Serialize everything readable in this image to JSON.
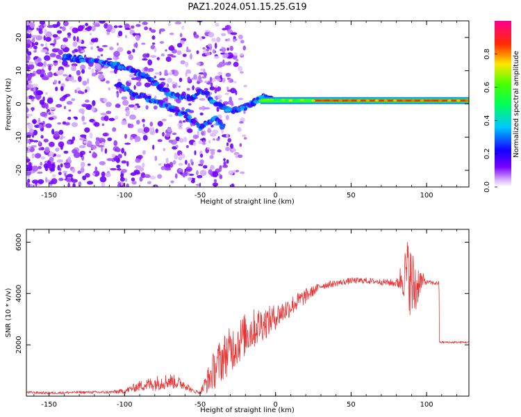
{
  "figure": {
    "title": "PAZ1.2024.051.15.25.G19"
  },
  "chart_data": [
    {
      "type": "heatmap",
      "xlabel": "Height of straight line (km)",
      "ylabel": "Frequency (Hz)",
      "xlim": [
        -165,
        128
      ],
      "ylim": [
        -25,
        25
      ],
      "xticks": [
        -150,
        -100,
        -50,
        0,
        50,
        100
      ],
      "yticks": [
        -20,
        -10,
        0,
        10,
        20
      ],
      "grid": false,
      "colorbar": {
        "label": "Normalized spectral amplitude",
        "range": [
          0,
          1
        ],
        "ticks": [
          0.0,
          0.2,
          0.4,
          0.6,
          0.8
        ],
        "colormap": "gist_rainbow (violet-blue-cyan-green-yellow-red-magenta)"
      },
      "features": {
        "dominant_line_frequency_hz": 1,
        "dominant_line_start_km": -10,
        "dominant_line_end_km": 128,
        "upper_branch_trend": [
          {
            "x": -138,
            "y": 14
          },
          {
            "x": -120,
            "y": 13
          },
          {
            "x": -100,
            "y": 11
          },
          {
            "x": -85,
            "y": 8
          },
          {
            "x": -70,
            "y": 3
          },
          {
            "x": -55,
            "y": 2
          },
          {
            "x": -48,
            "y": 4
          },
          {
            "x": -40,
            "y": 0
          },
          {
            "x": -30,
            "y": -2
          },
          {
            "x": -20,
            "y": -1
          },
          {
            "x": -8,
            "y": 2
          },
          {
            "x": 0,
            "y": 1
          }
        ],
        "lower_branch_trend": [
          {
            "x": -105,
            "y": 6
          },
          {
            "x": -95,
            "y": 3
          },
          {
            "x": -80,
            "y": 1
          },
          {
            "x": -65,
            "y": -2
          },
          {
            "x": -55,
            "y": -5
          },
          {
            "x": -50,
            "y": -7
          },
          {
            "x": -40,
            "y": -4
          },
          {
            "x": -35,
            "y": -7
          }
        ]
      }
    },
    {
      "type": "line",
      "xlabel": "Height of straight line (km)",
      "ylabel": "SNR (10 * v/v)",
      "xlim": [
        -165,
        128
      ],
      "ylim": [
        0,
        6500
      ],
      "xticks": [
        -150,
        -100,
        -50,
        0,
        50,
        100
      ],
      "yticks": [
        2000,
        4000,
        6000
      ],
      "line_color": "#e83535",
      "grid": false,
      "series": [
        {
          "x": [
            -165,
            -150,
            -130,
            -110,
            -100,
            -90,
            -80,
            -70,
            -60,
            -55,
            -50,
            -45,
            -40,
            -35,
            -30,
            -25,
            -20,
            -15,
            -10,
            -5,
            0,
            5,
            10,
            15,
            20,
            25,
            30,
            40,
            50,
            60,
            70,
            80,
            85,
            88,
            90,
            93,
            95,
            100,
            105,
            108,
            110,
            120,
            128
          ],
          "y": [
            150,
            120,
            150,
            150,
            200,
            400,
            500,
            600,
            450,
            200,
            150,
            600,
            1100,
            1500,
            1800,
            2100,
            2400,
            2600,
            2800,
            2900,
            3100,
            3300,
            3500,
            3700,
            3900,
            4100,
            4300,
            4400,
            4500,
            4500,
            4450,
            4400,
            4700,
            4900,
            4300,
            4200,
            4500,
            4450,
            4400,
            4400,
            2100,
            2100,
            2100
          ],
          "noise_amplitude": [
            50,
            50,
            50,
            60,
            100,
            200,
            300,
            300,
            200,
            80,
            60,
            500,
            800,
            900,
            900,
            900,
            850,
            800,
            700,
            600,
            500,
            450,
            400,
            350,
            300,
            200,
            150,
            120,
            120,
            120,
            120,
            150,
            900,
            1400,
            1500,
            1200,
            600,
            80,
            80,
            80,
            40,
            40,
            40
          ]
        }
      ]
    }
  ]
}
